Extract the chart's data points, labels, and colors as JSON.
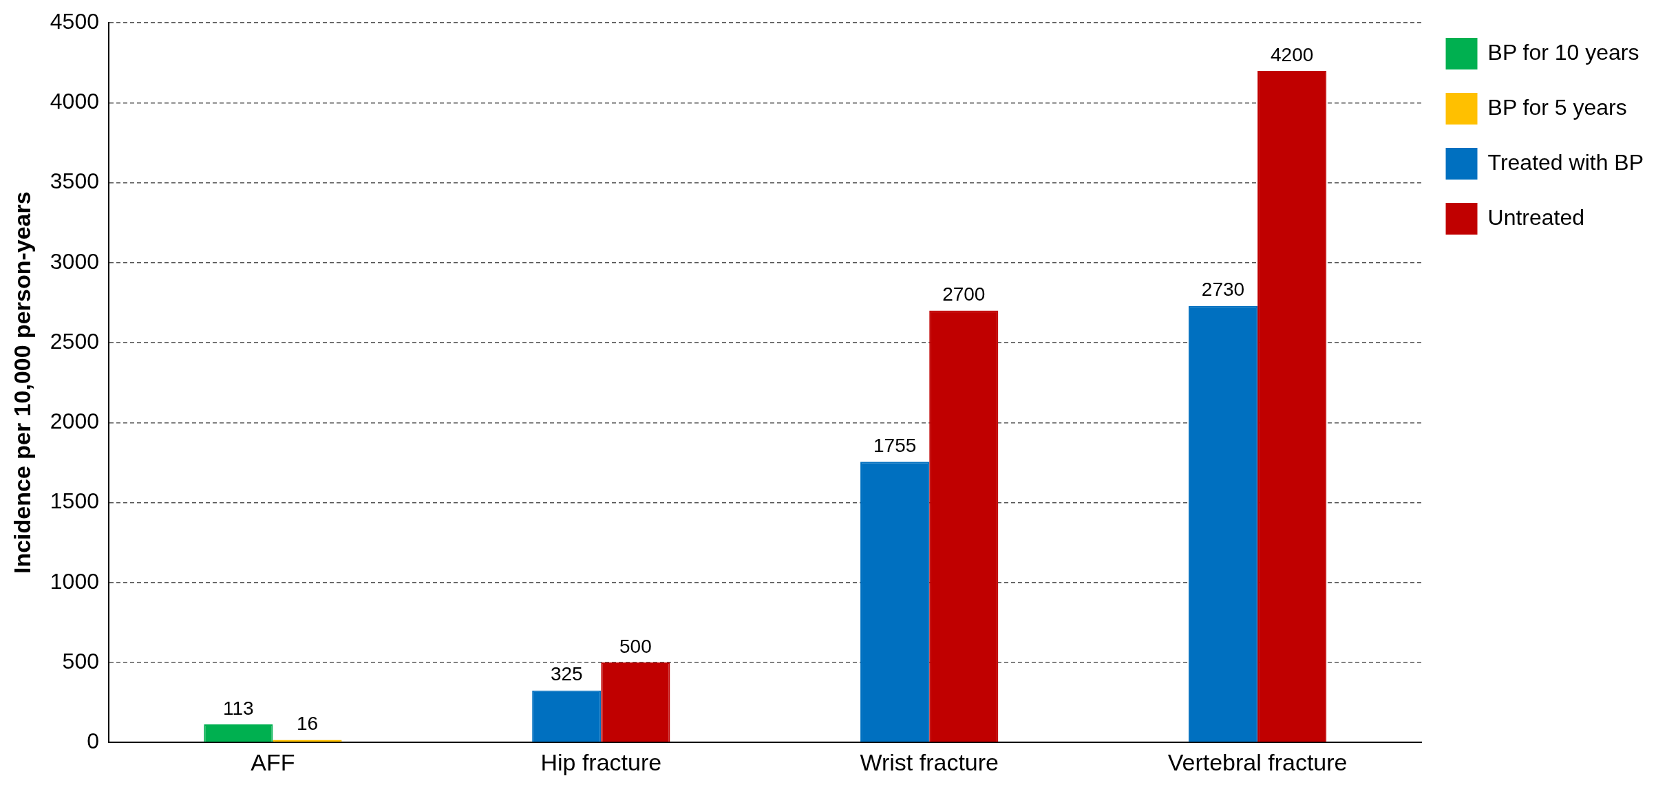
{
  "chart_data": {
    "type": "bar",
    "ylabel": "Incidence per 10,000 person-years",
    "categories": [
      "AFF",
      "Hip fracture",
      "Wrist fracture",
      "Vertebral fracture"
    ],
    "series": [
      {
        "name": "BP for 10 years",
        "color": "#00b050",
        "values": [
          113,
          null,
          null,
          null
        ]
      },
      {
        "name": "BP for 5 years",
        "color": "#ffc000",
        "values": [
          16,
          null,
          null,
          null
        ]
      },
      {
        "name": "Treated with BP",
        "color": "#0070c0",
        "values": [
          null,
          325,
          1755,
          2730
        ]
      },
      {
        "name": "Untreated",
        "color": "#c00000",
        "values": [
          null,
          500,
          2700,
          4200
        ]
      }
    ],
    "ylim": [
      0,
      4500
    ],
    "yticks": [
      0,
      500,
      1000,
      1500,
      2000,
      2500,
      3000,
      3500,
      4000,
      4500
    ],
    "grid": "y",
    "legend": "right",
    "data_labels": true
  }
}
